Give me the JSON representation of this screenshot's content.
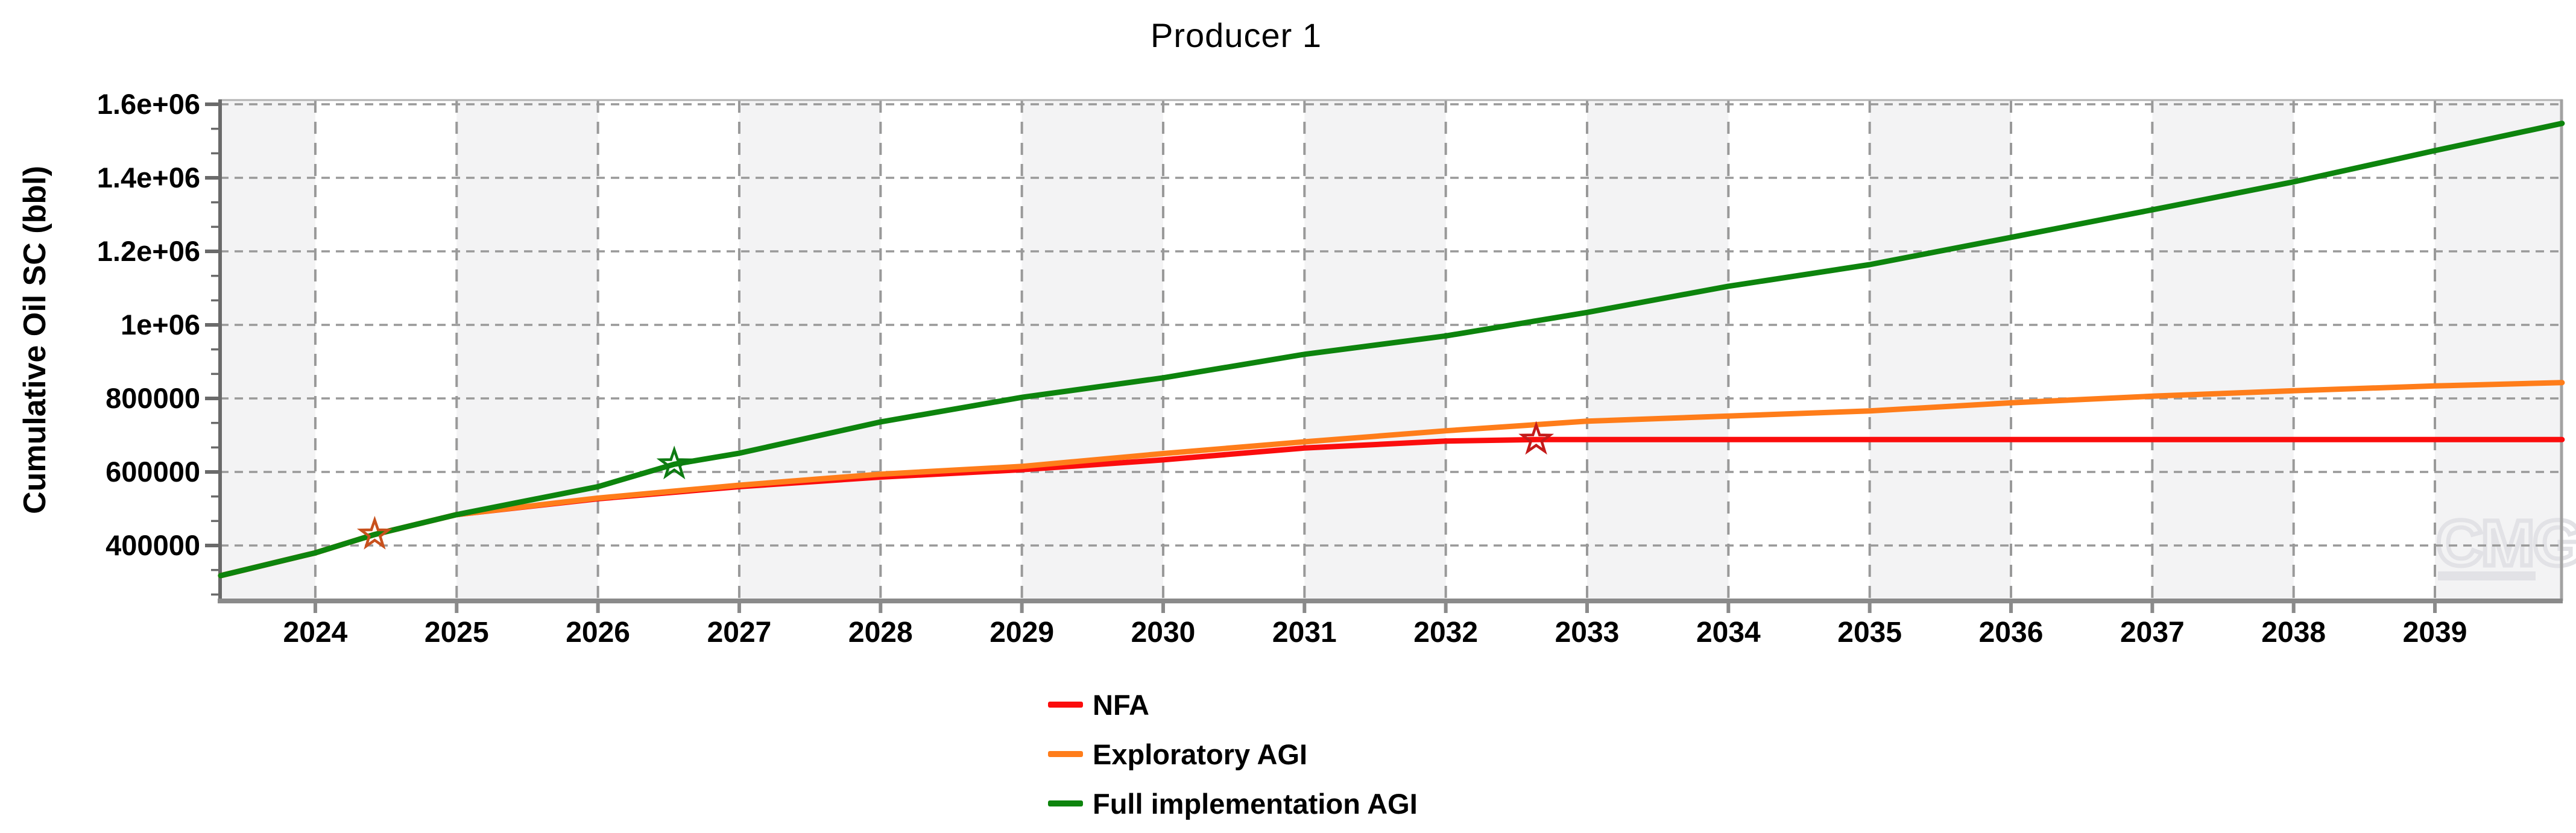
{
  "watermark": {
    "text": "CMG"
  },
  "chart_data": {
    "type": "line",
    "title": "Producer 1",
    "xlabel": "",
    "ylabel": "Cumulative Oil SC (bbl)",
    "xlim": [
      2023.326,
      2039.896
    ],
    "ylim": [
      249180,
      1609836
    ],
    "grid": "dashed-major-both-axes",
    "background_bands": "alternating vertical year stripes",
    "legend_position": "below-plot-left",
    "x_ticks": [
      {
        "value": 2024,
        "label": "2024"
      },
      {
        "value": 2025,
        "label": "2025"
      },
      {
        "value": 2026,
        "label": "2026"
      },
      {
        "value": 2027,
        "label": "2027"
      },
      {
        "value": 2028,
        "label": "2028"
      },
      {
        "value": 2029,
        "label": "2029"
      },
      {
        "value": 2030,
        "label": "2030"
      },
      {
        "value": 2031,
        "label": "2031"
      },
      {
        "value": 2032,
        "label": "2032"
      },
      {
        "value": 2033,
        "label": "2033"
      },
      {
        "value": 2034,
        "label": "2034"
      },
      {
        "value": 2035,
        "label": "2035"
      },
      {
        "value": 2036,
        "label": "2036"
      },
      {
        "value": 2037,
        "label": "2037"
      },
      {
        "value": 2038,
        "label": "2038"
      },
      {
        "value": 2039,
        "label": "2039"
      }
    ],
    "y_ticks": [
      {
        "value": 400000,
        "label": "400000"
      },
      {
        "value": 600000,
        "label": "600000"
      },
      {
        "value": 800000,
        "label": "800000"
      },
      {
        "value": 1000000,
        "label": "1e+06"
      },
      {
        "value": 1200000,
        "label": "1.2e+06"
      },
      {
        "value": 1400000,
        "label": "1.4e+06"
      },
      {
        "value": 1600000,
        "label": "1.6e+06"
      }
    ],
    "y_minor_tick_step": 66666.7,
    "colors": {
      "grid": "#999999",
      "band_gray": "#f3f3f4",
      "axis_dark": "#6a6a6a",
      "axis_light": "#8a8a8a",
      "border_top": "#b3b3b3",
      "border_right": "#a2a2a2",
      "watermark": "#e2e2e6"
    },
    "series": [
      {
        "name": "NFA",
        "color": "#fb0d0d",
        "marker": {
          "shape": "star",
          "x": 2032.64,
          "y": 688000,
          "color": "#c41a1a"
        },
        "points": [
          [
            2023.33,
            318000
          ],
          [
            2024,
            380000
          ],
          [
            2024.42,
            430000
          ],
          [
            2025,
            484000
          ],
          [
            2026,
            527000
          ],
          [
            2027,
            560000
          ],
          [
            2028,
            586000
          ],
          [
            2029,
            606000
          ],
          [
            2030,
            633000
          ],
          [
            2031,
            665000
          ],
          [
            2032,
            684000
          ],
          [
            2032.64,
            688000
          ],
          [
            2034,
            688000
          ],
          [
            2036,
            688000
          ],
          [
            2038,
            688000
          ],
          [
            2039.9,
            688000
          ]
        ]
      },
      {
        "name": "Exploratory AGI",
        "color": "#ff7d1a",
        "marker": {
          "shape": "star",
          "x": 2024.42,
          "y": 430000,
          "color": "#c8511d"
        },
        "points": [
          [
            2023.33,
            318000
          ],
          [
            2024,
            380000
          ],
          [
            2024.42,
            430000
          ],
          [
            2025,
            484000
          ],
          [
            2026,
            529000
          ],
          [
            2027,
            564000
          ],
          [
            2028,
            594000
          ],
          [
            2029,
            615000
          ],
          [
            2030,
            650000
          ],
          [
            2031,
            682000
          ],
          [
            2032,
            712000
          ],
          [
            2033,
            738000
          ],
          [
            2034,
            752000
          ],
          [
            2035,
            766000
          ],
          [
            2036,
            788000
          ],
          [
            2037,
            806000
          ],
          [
            2038,
            821000
          ],
          [
            2039,
            834000
          ],
          [
            2039.9,
            843000
          ]
        ]
      },
      {
        "name": "Full implementation AGI",
        "color": "#0d840d",
        "marker": {
          "shape": "star",
          "x": 2026.54,
          "y": 621000,
          "color": "#0d7a12"
        },
        "points": [
          [
            2023.33,
            318000
          ],
          [
            2024,
            380000
          ],
          [
            2024.42,
            430000
          ],
          [
            2025,
            484000
          ],
          [
            2026,
            560000
          ],
          [
            2026.54,
            621000
          ],
          [
            2027,
            651000
          ],
          [
            2028,
            736000
          ],
          [
            2029,
            803000
          ],
          [
            2030,
            856000
          ],
          [
            2031,
            920000
          ],
          [
            2032,
            970000
          ],
          [
            2033,
            1034000
          ],
          [
            2034,
            1105000
          ],
          [
            2035,
            1164000
          ],
          [
            2036,
            1238000
          ],
          [
            2037,
            1313000
          ],
          [
            2038,
            1389000
          ],
          [
            2039,
            1474000
          ],
          [
            2039.9,
            1548000
          ]
        ]
      }
    ]
  }
}
